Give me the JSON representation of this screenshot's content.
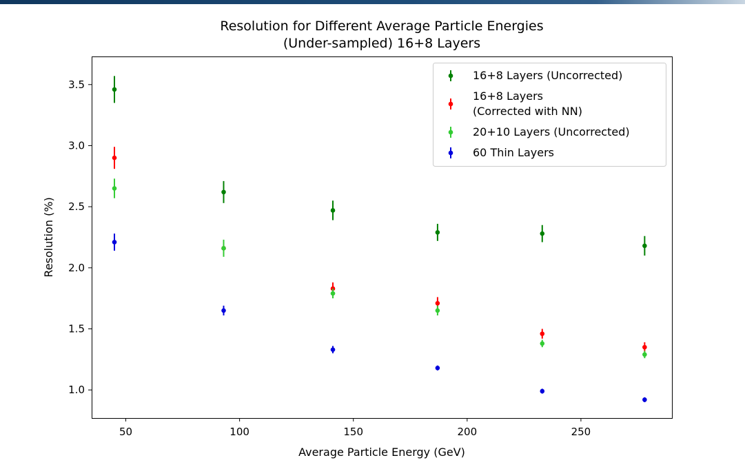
{
  "chart_data": {
    "type": "scatter",
    "title_lines": [
      "Resolution for Different Average Particle Energies",
      "(Under-sampled) 16+8 Layers"
    ],
    "xlabel": "Average Particle Energy (GeV)",
    "ylabel": "Resolution (%)",
    "xlim": [
      35,
      290
    ],
    "ylim": [
      0.77,
      3.73
    ],
    "xticks": [
      50,
      100,
      150,
      200,
      250
    ],
    "yticks": [
      1.0,
      1.5,
      2.0,
      2.5,
      3.0,
      3.5
    ],
    "ytick_labels": [
      "1.0",
      "1.5",
      "2.0",
      "2.5",
      "3.0",
      "3.5"
    ],
    "grid": false,
    "legend_position": "top-right",
    "x": [
      45,
      93,
      141,
      187,
      233,
      278
    ],
    "series": [
      {
        "name_lines": [
          "16+8 Layers (Uncorrected)"
        ],
        "color": "#008000",
        "values": [
          3.46,
          2.62,
          2.47,
          2.29,
          2.28,
          2.18
        ],
        "errors": [
          0.11,
          0.09,
          0.08,
          0.07,
          0.07,
          0.08
        ]
      },
      {
        "name_lines": [
          "16+8 Layers",
          "(Corrected with NN)"
        ],
        "color": "#ff0000",
        "values": [
          2.9,
          2.16,
          1.83,
          1.71,
          1.46,
          1.35
        ],
        "errors": [
          0.09,
          0.06,
          0.05,
          0.05,
          0.04,
          0.04
        ]
      },
      {
        "name_lines": [
          "20+10 Layers (Uncorrected)"
        ],
        "color": "#33cc33",
        "values": [
          2.65,
          2.16,
          1.79,
          1.65,
          1.38,
          1.29
        ],
        "errors": [
          0.08,
          0.07,
          0.04,
          0.04,
          0.03,
          0.03
        ]
      },
      {
        "name_lines": [
          "60 Thin Layers"
        ],
        "color": "#0000dd",
        "values": [
          2.21,
          1.65,
          1.33,
          1.18,
          0.99,
          0.92
        ],
        "errors": [
          0.07,
          0.04,
          0.03,
          0.02,
          0.02,
          0.02
        ]
      }
    ]
  }
}
